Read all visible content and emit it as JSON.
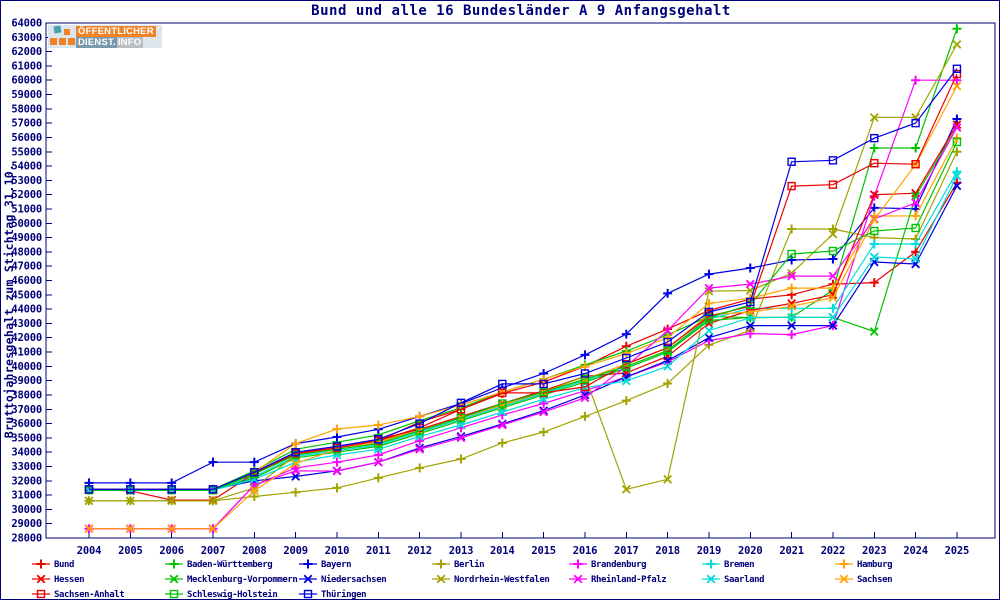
{
  "logo": {
    "line1": "ÖFFENTLICHER",
    "line2_left": "DIENST.",
    "line2_right": "INFO"
  },
  "chart_data": {
    "type": "line",
    "title": "Bund und alle 16 Bundesländer A 9 Anfangsgehalt",
    "xlabel": "",
    "ylabel": "Bruttojahresgehalt zum Stichtag 31.10.",
    "x": [
      2004,
      2005,
      2006,
      2007,
      2008,
      2009,
      2010,
      2011,
      2012,
      2013,
      2014,
      2015,
      2016,
      2017,
      2018,
      2019,
      2020,
      2021,
      2022,
      2023,
      2024,
      2025
    ],
    "ylim": [
      28000,
      64000
    ],
    "ytick_step": 1000,
    "grid": false,
    "legend_position": "bottom",
    "axis_color": "#00007a",
    "series": [
      {
        "name": "Bund",
        "color": "#ee0000",
        "marker": "plus",
        "values": [
          31400,
          31400,
          31400,
          31400,
          32500,
          33800,
          34300,
          34800,
          36100,
          37000,
          38100,
          38900,
          40000,
          41400,
          42600,
          43900,
          44700,
          45000,
          45750,
          45850,
          48000,
          52830
        ]
      },
      {
        "name": "Baden-Württemberg",
        "color": "#00c400",
        "marker": "plus",
        "values": [
          31400,
          31400,
          31400,
          31400,
          32700,
          34200,
          34700,
          35200,
          36200,
          37100,
          38200,
          39100,
          40100,
          41070,
          42200,
          43500,
          43400,
          43430,
          45330,
          55260,
          55260,
          63600
        ]
      },
      {
        "name": "Bayern",
        "color": "#0000e6",
        "marker": "plus",
        "values": [
          31850,
          31850,
          31850,
          33300,
          33300,
          34600,
          35060,
          35600,
          36500,
          37400,
          38500,
          39500,
          40800,
          42250,
          45100,
          46450,
          46870,
          47430,
          47500,
          51080,
          51010,
          57290
        ]
      },
      {
        "name": "Berlin",
        "color": "#a3a300",
        "marker": "plus",
        "values": [
          30600,
          30600,
          30600,
          30600,
          30900,
          31200,
          31500,
          32200,
          32900,
          33520,
          34640,
          35410,
          36500,
          37600,
          38800,
          41500,
          42500,
          49600,
          49600,
          49000,
          48900,
          55000
        ]
      },
      {
        "name": "Brandenburg",
        "color": "#ff00ff",
        "marker": "plus",
        "values": [
          28650,
          28650,
          28650,
          28650,
          31700,
          32900,
          33300,
          33800,
          34800,
          35700,
          36600,
          37400,
          38300,
          39260,
          40300,
          41800,
          42290,
          42220,
          42850,
          51900,
          60000,
          60000
        ]
      },
      {
        "name": "Bremen",
        "color": "#00dcdc",
        "marker": "plus",
        "values": [
          31350,
          31350,
          31350,
          31350,
          32300,
          33700,
          34100,
          34500,
          35400,
          36300,
          37200,
          38100,
          39000,
          39880,
          41000,
          43300,
          44060,
          44060,
          44060,
          48550,
          48550,
          53600
        ]
      },
      {
        "name": "Hamburg",
        "color": "#ffa300",
        "marker": "plus",
        "values": [
          31350,
          31350,
          31350,
          31350,
          32600,
          34600,
          35620,
          35900,
          36500,
          37300,
          38200,
          39100,
          40000,
          40900,
          42000,
          44400,
          44760,
          45470,
          45470,
          50500,
          50520,
          55960
        ]
      },
      {
        "name": "Hessen",
        "color": "#ee0000",
        "marker": "cross",
        "values": [
          31400,
          31300,
          30650,
          30650,
          32540,
          33900,
          34400,
          34900,
          35600,
          36500,
          37400,
          38300,
          39300,
          39540,
          40700,
          43000,
          43900,
          44400,
          45000,
          52000,
          52100,
          56900
        ]
      },
      {
        "name": "Mecklenburg-Vorpommern",
        "color": "#00c400",
        "marker": "cross",
        "values": [
          31350,
          31350,
          31350,
          31350,
          32200,
          33600,
          34000,
          34400,
          35300,
          36200,
          37100,
          38000,
          38900,
          39880,
          41000,
          43200,
          43430,
          43430,
          43430,
          42430,
          51900,
          56700
        ]
      },
      {
        "name": "Niedersachsen",
        "color": "#0000e6",
        "marker": "cross",
        "values": [
          31400,
          31400,
          31400,
          31400,
          32000,
          32300,
          32700,
          33300,
          34300,
          35100,
          35970,
          36900,
          38000,
          39260,
          40400,
          42000,
          42850,
          42850,
          42850,
          47290,
          47150,
          52620
        ]
      },
      {
        "name": "Nordrhein-Westfalen",
        "color": "#a3a300",
        "marker": "cross",
        "values": [
          30600,
          30600,
          30600,
          30600,
          31500,
          33800,
          34300,
          34800,
          35500,
          36400,
          37300,
          38200,
          39300,
          31400,
          32100,
          45250,
          45300,
          46500,
          49250,
          57400,
          57400,
          62500
        ]
      },
      {
        "name": "Rheinland-Pfalz",
        "color": "#ff00ff",
        "marker": "cross",
        "values": [
          28650,
          28650,
          28650,
          28650,
          31700,
          32700,
          32680,
          33300,
          34200,
          35000,
          35900,
          36800,
          37800,
          40000,
          42500,
          45470,
          45750,
          46310,
          46310,
          50300,
          51430,
          56700
        ]
      },
      {
        "name": "Saarland",
        "color": "#00dcdc",
        "marker": "cross",
        "values": [
          31350,
          31350,
          31350,
          31350,
          32100,
          33300,
          33800,
          34200,
          35100,
          35900,
          36800,
          37700,
          38500,
          38980,
          40000,
          42500,
          43400,
          43430,
          43430,
          47640,
          47500,
          53300
        ]
      },
      {
        "name": "Sachsen",
        "color": "#ffa300",
        "marker": "cross",
        "values": [
          28650,
          28650,
          28650,
          28650,
          31300,
          33200,
          34200,
          34700,
          35500,
          36400,
          37300,
          38200,
          39100,
          40160,
          41300,
          43600,
          43800,
          44200,
          44800,
          50250,
          54100,
          59590
        ]
      },
      {
        "name": "Sachsen-Anhalt",
        "color": "#ee0000",
        "marker": "square",
        "values": [
          31400,
          31400,
          31400,
          31400,
          32470,
          33900,
          34300,
          34800,
          35700,
          37000,
          38140,
          38140,
          38560,
          40160,
          41300,
          43500,
          44200,
          52600,
          52700,
          54200,
          54130,
          60430
        ]
      },
      {
        "name": "Schleswig-Holstein",
        "color": "#00c400",
        "marker": "square",
        "values": [
          31350,
          31350,
          31350,
          31350,
          32470,
          33800,
          34200,
          34600,
          35500,
          36400,
          37400,
          38200,
          39100,
          40000,
          41100,
          43400,
          44300,
          47850,
          48060,
          49460,
          49670,
          55680
        ]
      },
      {
        "name": "Thüringen",
        "color": "#0000e6",
        "marker": "square",
        "values": [
          31400,
          31400,
          31400,
          31400,
          32600,
          34000,
          34400,
          34900,
          36000,
          37450,
          38770,
          38770,
          39500,
          40580,
          41700,
          43800,
          44500,
          54300,
          54400,
          55950,
          57000,
          60800
        ]
      }
    ]
  }
}
